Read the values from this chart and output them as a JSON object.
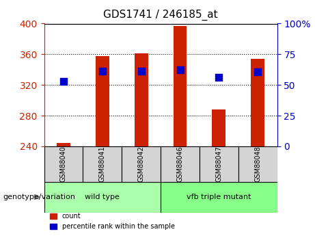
{
  "title": "GDS1741 / 246185_at",
  "samples": [
    "GSM88040",
    "GSM88041",
    "GSM88042",
    "GSM88046",
    "GSM88047",
    "GSM88048"
  ],
  "bar_values": [
    244,
    358,
    361,
    397,
    288,
    354
  ],
  "dot_values": [
    325,
    338,
    338,
    340,
    330,
    337
  ],
  "bar_bottom": 240,
  "ylim": [
    240,
    400
  ],
  "yticks_left": [
    240,
    280,
    320,
    360,
    400
  ],
  "yticks_right": [
    0,
    25,
    50,
    75,
    100
  ],
  "yticks_right_positions": [
    240,
    280,
    320,
    360,
    400
  ],
  "bar_color": "#cc2200",
  "dot_color": "#0000cc",
  "groups": [
    {
      "label": "wild type",
      "indices": [
        0,
        1,
        2
      ],
      "color": "#aaffaa"
    },
    {
      "label": "vfb triple mutant",
      "indices": [
        3,
        4,
        5
      ],
      "color": "#88ff88"
    }
  ],
  "group_label_prefix": "genotype/variation",
  "xlabel_color": "#cc2200",
  "ylabel_color": "#cc2200",
  "y2label_color": "#0000cc",
  "tick_label_color_left": "#cc2200",
  "tick_label_color_right": "#0000cc",
  "legend_count_label": "count",
  "legend_pct_label": "percentile rank within the sample",
  "bar_width": 0.35,
  "dot_size": 60,
  "grid_lines": [
    280,
    320,
    360
  ],
  "figsize": [
    4.61,
    3.45
  ],
  "dpi": 100
}
